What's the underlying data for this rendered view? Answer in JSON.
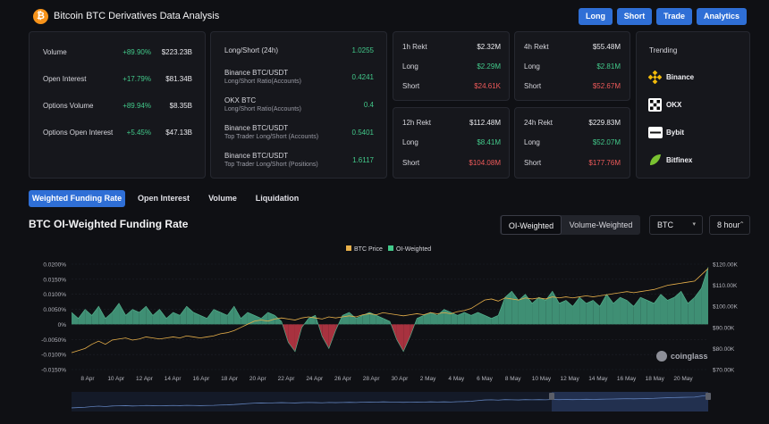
{
  "header": {
    "logo_glyph": "₿",
    "title": "Bitcoin BTC Derivatives Data Analysis",
    "buttons": [
      "Long",
      "Short",
      "Trade",
      "Analytics"
    ]
  },
  "overview": [
    {
      "label": "Volume",
      "change": "+89.90%",
      "value": "$223.23B"
    },
    {
      "label": "Open Interest",
      "change": "+17.79%",
      "value": "$81.34B"
    },
    {
      "label": "Options Volume",
      "change": "+89.94%",
      "value": "$8.35B"
    },
    {
      "label": "Options Open Interest",
      "change": "+5.45%",
      "value": "$47.13B"
    }
  ],
  "long_short": [
    {
      "label": "Long/Short (24h)",
      "sub": "",
      "value": "1.0255"
    },
    {
      "label": "Binance BTC/USDT",
      "sub": "Long/Short Ratio(Accounts)",
      "value": "0.4241"
    },
    {
      "label": "OKX BTC",
      "sub": "Long/Short Ratio(Accounts)",
      "value": "0.4"
    },
    {
      "label": "Binance BTC/USDT",
      "sub": "Top Trader Long/Short (Accounts)",
      "value": "0.5401"
    },
    {
      "label": "Binance BTC/USDT",
      "sub": "Top Trader Long/Short (Positions)",
      "value": "1.6117"
    }
  ],
  "rekt": [
    {
      "period": "1h Rekt",
      "total": "$2.32M",
      "long_label": "Long",
      "long": "$2.29M",
      "short_label": "Short",
      "short": "$24.61K"
    },
    {
      "period": "4h Rekt",
      "total": "$55.48M",
      "long_label": "Long",
      "long": "$2.81M",
      "short_label": "Short",
      "short": "$52.67M"
    },
    {
      "period": "12h Rekt",
      "total": "$112.48M",
      "long_label": "Long",
      "long": "$8.41M",
      "short_label": "Short",
      "short": "$104.08M"
    },
    {
      "period": "24h Rekt",
      "total": "$229.83M",
      "long_label": "Long",
      "long": "$52.07M",
      "short_label": "Short",
      "short": "$177.76M"
    }
  ],
  "trending": {
    "title": "Trending",
    "items": [
      {
        "name": "Binance",
        "icon": "binance-icon"
      },
      {
        "name": "OKX",
        "icon": "okx-icon"
      },
      {
        "name": "Bybit",
        "icon": "bybit-icon"
      },
      {
        "name": "Bitfinex",
        "icon": "bitfinex-icon"
      }
    ]
  },
  "tabs": [
    "Weighted Funding Rate",
    "Open Interest",
    "Volume",
    "Liquidation"
  ],
  "chart_section": {
    "title": "BTC OI-Weighted Funding Rate",
    "segments": [
      "OI-Weighted",
      "Volume-Weighted"
    ],
    "symbol_select": "BTC",
    "interval_select": "8 hour",
    "watermark": "coinglass"
  },
  "colors": {
    "accent": "#2f6fd6",
    "positive": "#42c98a",
    "negative": "#ef5a5a",
    "btc_price": "#e8b04a",
    "area_positive": "#3f8f74",
    "area_negative": "#a8323f"
  },
  "chart_data": {
    "type": "area",
    "legend": [
      {
        "name": "BTC Price",
        "color": "#e8b04a"
      },
      {
        "name": "OI-Weighted",
        "color": "#42c98a"
      }
    ],
    "legend_position": "top-center",
    "grid": true,
    "x_labels": [
      "8 Apr",
      "10 Apr",
      "12 Apr",
      "14 Apr",
      "16 Apr",
      "18 Apr",
      "20 Apr",
      "22 Apr",
      "24 Apr",
      "26 Apr",
      "28 Apr",
      "30 Apr",
      "2 May",
      "4 May",
      "6 May",
      "8 May",
      "10 May",
      "12 May",
      "14 May",
      "16 May",
      "18 May",
      "20 May"
    ],
    "y_left_ticks": [
      "0.0200%",
      "0.0150%",
      "0.0100%",
      "0.0050%",
      "0%",
      "-0.0050%",
      "-0.0100%",
      "-0.0150%"
    ],
    "y_left_range": [
      -0.015,
      0.02
    ],
    "y_right_ticks": [
      "$120.00K",
      "$110.00K",
      "$100.00K",
      "$90.00K",
      "$80.00K",
      "$70.00K"
    ],
    "y_right_range": [
      70000,
      120000
    ],
    "series": [
      {
        "name": "OI-Weighted",
        "values": [
          0.004,
          0.002,
          0.005,
          0.003,
          0.006,
          0.002,
          0.004,
          0.007,
          0.003,
          0.005,
          0.004,
          0.006,
          0.003,
          0.005,
          0.002,
          0.004,
          0.003,
          0.006,
          0.004,
          0.003,
          0.002,
          0.005,
          0.004,
          0.003,
          0.006,
          0.002,
          0.004,
          0.003,
          0.002,
          0.004,
          0.003,
          0.001,
          -0.006,
          -0.009,
          -0.001,
          0.002,
          0.003,
          -0.004,
          -0.008,
          -0.002,
          0.003,
          0.004,
          0.002,
          0.003,
          0.004,
          0.003,
          0.002,
          0.001,
          -0.005,
          -0.009,
          -0.004,
          0.002,
          0.003,
          0.004,
          0.003,
          0.005,
          0.004,
          0.003,
          0.004,
          0.003,
          0.004,
          0.003,
          0.002,
          0.003,
          0.009,
          0.011,
          0.008,
          0.01,
          0.007,
          0.009,
          0.008,
          0.011,
          0.007,
          0.008,
          0.006,
          0.009,
          0.007,
          0.008,
          0.006,
          0.01,
          0.007,
          0.009,
          0.008,
          0.006,
          0.009,
          0.008,
          0.007,
          0.01,
          0.008,
          0.009,
          0.011,
          0.007,
          0.009,
          0.012,
          0.019
        ]
      },
      {
        "name": "BTC Price",
        "values": [
          78000,
          79000,
          80000,
          82000,
          83500,
          82000,
          84000,
          84500,
          85000,
          84000,
          84500,
          85500,
          85000,
          84500,
          85000,
          85500,
          85000,
          86000,
          85500,
          85000,
          85500,
          86000,
          87000,
          87500,
          88500,
          90000,
          91500,
          93000,
          93500,
          93000,
          94000,
          94500,
          94000,
          93500,
          94500,
          95000,
          94500,
          94000,
          95000,
          94500,
          95000,
          95500,
          95000,
          96000,
          96500,
          96000,
          97000,
          96500,
          96000,
          95500,
          96000,
          96500,
          96000,
          97000,
          96500,
          97000,
          96500,
          97500,
          98000,
          99000,
          101000,
          103000,
          103500,
          102500,
          104000,
          103500,
          103000,
          104000,
          103500,
          104000,
          103500,
          104500,
          104000,
          104500,
          104000,
          104500,
          105000,
          104500,
          105000,
          105500,
          106000,
          106500,
          107000,
          106500,
          107000,
          107500,
          108000,
          109000,
          110000,
          110500,
          111000,
          111500,
          112000,
          115000,
          118000
        ]
      }
    ]
  }
}
